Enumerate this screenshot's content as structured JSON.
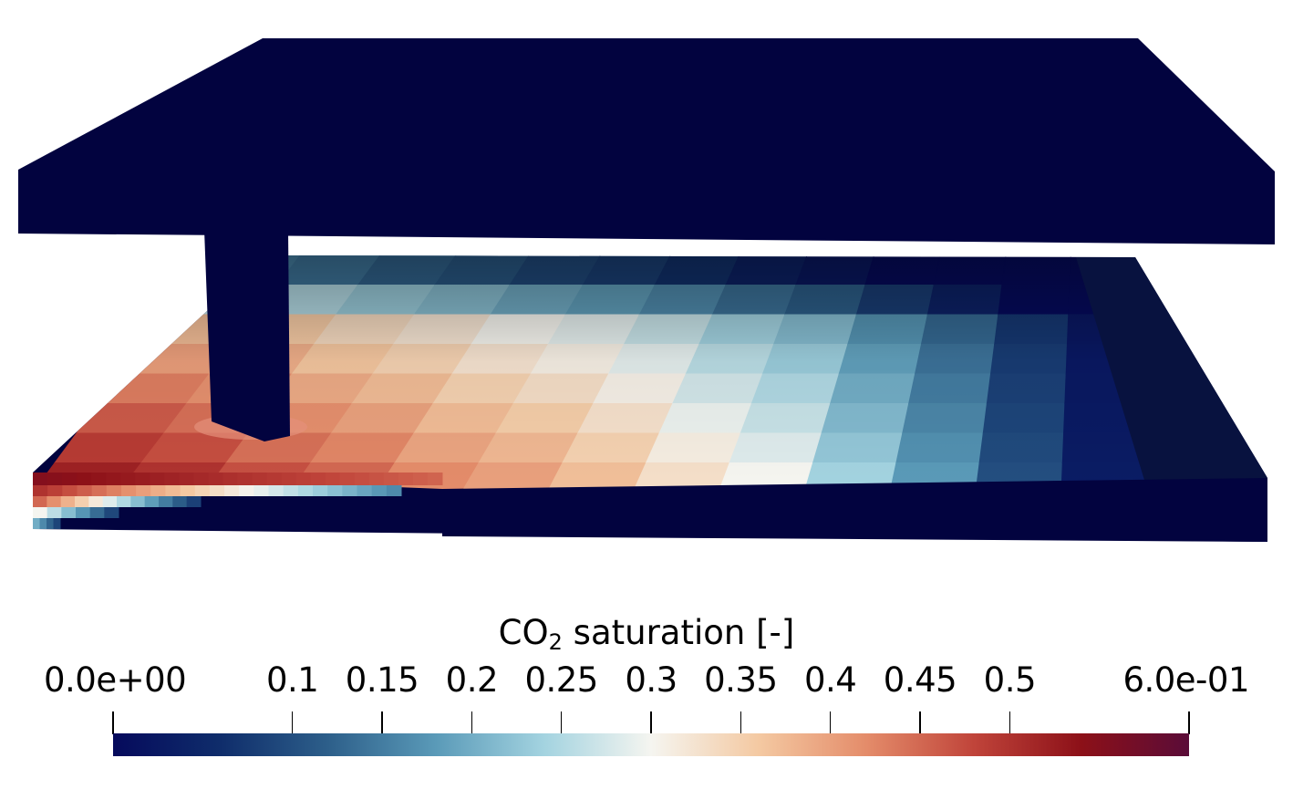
{
  "colorbar": {
    "title_main": "CO",
    "title_sub": "2",
    "title_rest": " saturation [-]",
    "min": 0.0,
    "max": 0.6,
    "min_label": "0.0e+00",
    "max_label": "6.0e-01",
    "ticks": [
      {
        "value": 0.1,
        "label": "0.1"
      },
      {
        "value": 0.15,
        "label": "0.15"
      },
      {
        "value": 0.2,
        "label": "0.2"
      },
      {
        "value": 0.25,
        "label": "0.25"
      },
      {
        "value": 0.3,
        "label": "0.3"
      },
      {
        "value": 0.35,
        "label": "0.35"
      },
      {
        "value": 0.4,
        "label": "0.4"
      },
      {
        "value": 0.45,
        "label": "0.45"
      },
      {
        "value": 0.5,
        "label": "0.5"
      }
    ],
    "colormap": [
      "#050a5c",
      "#0f2d6b",
      "#2d5f8a",
      "#5a9ab8",
      "#a3d3e0",
      "#f5f5f0",
      "#f4c9a2",
      "#e48c6a",
      "#c0443a",
      "#8c1018",
      "#5a0c38"
    ]
  },
  "scene": {
    "description_colors": {
      "background": "#ffffff",
      "caprock": "#02033f"
    },
    "plume_saturation_columns": [
      0.52,
      0.5,
      0.47,
      0.45,
      0.42,
      0.4,
      0.37,
      0.33,
      0.3,
      0.24,
      0.18,
      0.1,
      0.03
    ]
  }
}
